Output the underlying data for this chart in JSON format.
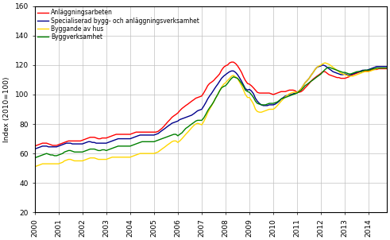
{
  "ylabel": "Index (2010=100)",
  "ylim": [
    20,
    160
  ],
  "yticks": [
    20,
    40,
    60,
    80,
    100,
    120,
    140,
    160
  ],
  "xlim": [
    2000.0,
    2014.75
  ],
  "xticks": [
    2000,
    2001,
    2002,
    2003,
    2004,
    2005,
    2006,
    2007,
    2008,
    2009,
    2010,
    2011,
    2012,
    2013,
    2014
  ],
  "colors": {
    "byggverksamhet": "#008000",
    "byggande_av_hus": "#FFD700",
    "anlaggningsarbeten": "#FF0000",
    "specialiserad": "#00008B"
  },
  "legend": [
    "Byggverksamhet",
    "Byggande av hus",
    "Anläggningsarbeten",
    "Specialiserad bygg- och anläggningsverksamhet"
  ],
  "series": {
    "t": [
      2000.0,
      2000.08,
      2000.17,
      2000.25,
      2000.33,
      2000.42,
      2000.5,
      2000.58,
      2000.67,
      2000.75,
      2000.83,
      2000.92,
      2001.0,
      2001.08,
      2001.17,
      2001.25,
      2001.33,
      2001.42,
      2001.5,
      2001.58,
      2001.67,
      2001.75,
      2001.83,
      2001.92,
      2002.0,
      2002.08,
      2002.17,
      2002.25,
      2002.33,
      2002.42,
      2002.5,
      2002.58,
      2002.67,
      2002.75,
      2002.83,
      2002.92,
      2003.0,
      2003.08,
      2003.17,
      2003.25,
      2003.33,
      2003.42,
      2003.5,
      2003.58,
      2003.67,
      2003.75,
      2003.83,
      2003.92,
      2004.0,
      2004.08,
      2004.17,
      2004.25,
      2004.33,
      2004.42,
      2004.5,
      2004.58,
      2004.67,
      2004.75,
      2004.83,
      2004.92,
      2005.0,
      2005.08,
      2005.17,
      2005.25,
      2005.33,
      2005.42,
      2005.5,
      2005.58,
      2005.67,
      2005.75,
      2005.83,
      2005.92,
      2006.0,
      2006.08,
      2006.17,
      2006.25,
      2006.33,
      2006.42,
      2006.5,
      2006.58,
      2006.67,
      2006.75,
      2006.83,
      2006.92,
      2007.0,
      2007.08,
      2007.17,
      2007.25,
      2007.33,
      2007.42,
      2007.5,
      2007.58,
      2007.67,
      2007.75,
      2007.83,
      2007.92,
      2008.0,
      2008.08,
      2008.17,
      2008.25,
      2008.33,
      2008.42,
      2008.5,
      2008.58,
      2008.67,
      2008.75,
      2008.83,
      2008.92,
      2009.0,
      2009.08,
      2009.17,
      2009.25,
      2009.33,
      2009.42,
      2009.5,
      2009.58,
      2009.67,
      2009.75,
      2009.83,
      2009.92,
      2010.0,
      2010.08,
      2010.17,
      2010.25,
      2010.33,
      2010.42,
      2010.5,
      2010.58,
      2010.67,
      2010.75,
      2010.83,
      2010.92,
      2011.0,
      2011.08,
      2011.17,
      2011.25,
      2011.33,
      2011.42,
      2011.5,
      2011.58,
      2011.67,
      2011.75,
      2011.83,
      2011.92,
      2012.0,
      2012.08,
      2012.17,
      2012.25,
      2012.33,
      2012.42,
      2012.5,
      2012.58,
      2012.67,
      2012.75,
      2012.83,
      2012.92,
      2013.0,
      2013.08,
      2013.17,
      2013.25,
      2013.33,
      2013.42,
      2013.5,
      2013.58,
      2013.67,
      2013.75,
      2013.83,
      2013.92,
      2014.0,
      2014.08,
      2014.17,
      2014.25,
      2014.33,
      2014.42,
      2014.5,
      2014.58,
      2014.67,
      2014.75
    ],
    "byggverksamhet": [
      57.0,
      57.5,
      58.0,
      58.5,
      59.0,
      59.5,
      60.0,
      59.5,
      59.0,
      59.0,
      58.5,
      58.5,
      59.0,
      59.5,
      60.0,
      61.0,
      61.5,
      62.0,
      62.0,
      61.5,
      61.0,
      61.0,
      61.0,
      61.0,
      61.0,
      61.5,
      62.0,
      62.5,
      63.0,
      63.0,
      63.0,
      62.5,
      62.0,
      62.0,
      62.5,
      62.5,
      62.0,
      62.5,
      63.0,
      63.5,
      64.0,
      64.5,
      65.0,
      65.0,
      65.0,
      65.0,
      65.0,
      65.0,
      65.0,
      65.5,
      66.0,
      66.5,
      67.0,
      67.5,
      68.0,
      68.0,
      68.0,
      68.0,
      68.0,
      68.0,
      68.0,
      68.5,
      69.0,
      69.5,
      70.0,
      70.5,
      71.0,
      71.5,
      72.0,
      72.5,
      73.0,
      73.0,
      72.0,
      73.0,
      74.0,
      75.5,
      77.0,
      78.0,
      79.0,
      80.0,
      81.0,
      82.0,
      82.5,
      82.5,
      82.5,
      84.0,
      86.5,
      89.0,
      91.0,
      93.0,
      95.0,
      97.5,
      100.0,
      102.5,
      104.5,
      105.5,
      106.0,
      107.5,
      109.5,
      111.0,
      112.0,
      111.5,
      111.0,
      109.5,
      107.5,
      105.5,
      103.0,
      102.0,
      101.5,
      100.0,
      98.0,
      95.5,
      94.0,
      93.5,
      93.0,
      93.0,
      93.0,
      93.5,
      94.0,
      94.0,
      94.0,
      94.5,
      95.0,
      96.0,
      97.0,
      97.5,
      98.0,
      98.5,
      99.0,
      99.5,
      100.0,
      100.5,
      101.0,
      102.0,
      103.0,
      104.5,
      106.0,
      107.0,
      108.0,
      109.0,
      110.0,
      111.0,
      112.0,
      113.0,
      114.0,
      115.5,
      117.0,
      118.0,
      118.5,
      118.0,
      117.5,
      117.0,
      116.5,
      116.0,
      115.5,
      115.0,
      115.0,
      114.5,
      114.0,
      114.0,
      114.5,
      115.0,
      115.5,
      115.5,
      115.5,
      116.0,
      116.5,
      116.5,
      116.5,
      117.0,
      117.5,
      117.5,
      118.0,
      118.0,
      118.0,
      118.0,
      118.0,
      118.0
    ],
    "byggande_av_hus": [
      51.0,
      51.5,
      52.0,
      52.5,
      53.0,
      53.0,
      53.0,
      53.0,
      53.0,
      53.0,
      53.0,
      53.0,
      53.0,
      53.5,
      54.0,
      55.0,
      55.5,
      56.0,
      56.0,
      55.5,
      55.0,
      55.0,
      55.0,
      55.0,
      55.0,
      55.5,
      56.0,
      56.5,
      57.0,
      57.0,
      57.0,
      56.5,
      56.0,
      56.0,
      56.0,
      56.0,
      56.0,
      56.5,
      57.0,
      57.5,
      57.5,
      57.5,
      57.5,
      57.5,
      57.5,
      57.5,
      57.5,
      57.5,
      57.5,
      58.0,
      58.5,
      59.0,
      59.5,
      60.0,
      60.0,
      60.0,
      60.0,
      60.0,
      60.0,
      60.0,
      60.0,
      60.5,
      61.0,
      62.0,
      63.0,
      64.0,
      65.0,
      66.0,
      67.0,
      68.0,
      68.5,
      68.5,
      67.5,
      68.5,
      70.0,
      71.5,
      73.0,
      74.5,
      76.0,
      77.5,
      79.0,
      80.0,
      80.5,
      80.0,
      79.5,
      81.5,
      84.5,
      87.5,
      90.0,
      92.5,
      95.0,
      97.5,
      100.0,
      102.5,
      105.0,
      107.0,
      108.0,
      109.5,
      111.0,
      112.5,
      113.0,
      112.0,
      111.0,
      108.5,
      106.0,
      103.0,
      100.0,
      98.0,
      98.0,
      96.0,
      93.5,
      90.0,
      88.5,
      88.0,
      88.0,
      88.5,
      89.0,
      89.5,
      90.0,
      90.0,
      90.0,
      91.0,
      92.5,
      94.0,
      95.5,
      97.0,
      98.5,
      99.5,
      100.5,
      101.0,
      101.5,
      101.5,
      101.5,
      102.5,
      104.0,
      106.0,
      108.0,
      109.5,
      111.0,
      113.0,
      115.0,
      117.0,
      118.5,
      119.5,
      120.0,
      121.0,
      121.5,
      121.0,
      120.5,
      119.5,
      118.5,
      117.5,
      116.5,
      115.5,
      114.5,
      114.0,
      113.5,
      113.0,
      112.5,
      112.5,
      112.5,
      113.0,
      113.5,
      114.0,
      114.5,
      115.0,
      115.5,
      115.5,
      115.5,
      116.0,
      116.5,
      117.0,
      117.5,
      118.0,
      118.0,
      118.0,
      118.0,
      118.0
    ],
    "anlaggningsarbeten": [
      65.0,
      65.5,
      66.0,
      66.5,
      67.0,
      67.0,
      67.0,
      66.5,
      66.0,
      65.5,
      65.5,
      65.5,
      66.0,
      66.5,
      67.0,
      67.5,
      68.0,
      68.5,
      68.5,
      68.5,
      68.5,
      68.5,
      68.5,
      68.5,
      69.0,
      69.5,
      70.0,
      70.5,
      71.0,
      71.0,
      71.0,
      70.5,
      70.0,
      70.0,
      70.5,
      70.5,
      70.5,
      71.0,
      71.5,
      72.0,
      72.5,
      73.0,
      73.0,
      73.0,
      73.0,
      73.0,
      73.0,
      73.0,
      73.0,
      73.5,
      74.0,
      74.5,
      74.5,
      74.5,
      74.5,
      74.5,
      74.5,
      74.5,
      74.5,
      74.5,
      74.5,
      74.5,
      75.0,
      76.0,
      77.0,
      78.5,
      80.0,
      81.5,
      83.0,
      84.5,
      85.5,
      86.5,
      87.5,
      89.0,
      90.5,
      91.5,
      92.5,
      93.5,
      94.5,
      95.5,
      96.5,
      97.5,
      98.0,
      98.5,
      99.0,
      101.0,
      103.5,
      106.0,
      107.5,
      108.5,
      109.5,
      111.0,
      112.5,
      114.0,
      116.5,
      118.5,
      119.5,
      120.0,
      121.5,
      122.0,
      122.0,
      121.0,
      119.5,
      117.5,
      115.0,
      112.0,
      109.5,
      107.5,
      107.0,
      106.0,
      104.5,
      103.0,
      101.5,
      101.0,
      101.0,
      101.0,
      101.0,
      101.0,
      101.0,
      100.5,
      100.0,
      100.5,
      101.0,
      101.5,
      102.0,
      102.0,
      102.0,
      102.5,
      103.0,
      103.0,
      103.0,
      102.5,
      101.5,
      101.5,
      102.0,
      103.0,
      104.5,
      106.0,
      107.5,
      109.0,
      110.5,
      111.5,
      112.5,
      113.5,
      114.5,
      115.5,
      115.5,
      114.5,
      113.5,
      113.0,
      112.5,
      112.0,
      111.5,
      111.5,
      111.0,
      111.0,
      111.0,
      111.5,
      112.0,
      113.0,
      113.5,
      114.0,
      114.5,
      115.0,
      115.5,
      116.0,
      116.0,
      116.0,
      116.0,
      116.5,
      117.0,
      117.0,
      117.0,
      117.5,
      117.5,
      117.5,
      117.5,
      117.5
    ],
    "specialiserad": [
      63.0,
      63.5,
      64.0,
      64.5,
      65.0,
      65.0,
      65.0,
      64.5,
      64.5,
      64.5,
      64.5,
      64.5,
      65.0,
      65.5,
      66.0,
      66.5,
      67.0,
      67.0,
      67.0,
      66.5,
      66.5,
      66.5,
      66.5,
      66.5,
      66.5,
      67.0,
      67.5,
      68.0,
      68.0,
      67.5,
      67.5,
      67.0,
      67.0,
      67.0,
      67.0,
      67.0,
      67.0,
      67.5,
      68.0,
      68.5,
      69.0,
      69.5,
      70.0,
      70.0,
      70.0,
      70.0,
      70.0,
      70.0,
      70.0,
      70.5,
      71.0,
      71.5,
      72.0,
      72.5,
      72.5,
      72.5,
      72.5,
      72.5,
      72.5,
      72.5,
      72.5,
      73.0,
      73.5,
      74.5,
      75.5,
      76.5,
      77.5,
      78.5,
      79.5,
      80.5,
      81.0,
      81.5,
      82.0,
      83.0,
      83.5,
      84.0,
      84.5,
      85.0,
      85.5,
      86.0,
      87.0,
      88.0,
      89.0,
      89.5,
      90.0,
      92.0,
      94.5,
      97.0,
      99.0,
      101.0,
      103.0,
      105.0,
      107.0,
      109.0,
      111.0,
      112.5,
      113.5,
      114.5,
      115.5,
      116.0,
      116.0,
      115.0,
      113.5,
      111.5,
      109.0,
      106.5,
      104.0,
      103.0,
      103.5,
      102.5,
      100.5,
      97.5,
      95.5,
      94.0,
      93.0,
      92.5,
      92.5,
      92.5,
      93.0,
      93.0,
      93.0,
      93.5,
      94.5,
      95.5,
      97.0,
      98.0,
      99.0,
      99.5,
      100.0,
      100.0,
      100.5,
      101.0,
      101.5,
      102.5,
      104.0,
      106.0,
      108.0,
      109.5,
      111.0,
      113.0,
      115.0,
      117.0,
      118.5,
      119.0,
      119.5,
      120.0,
      119.5,
      118.5,
      117.5,
      116.5,
      115.5,
      115.0,
      114.5,
      114.0,
      113.5,
      113.5,
      114.0,
      113.5,
      113.0,
      113.5,
      114.0,
      114.5,
      115.0,
      115.5,
      116.0,
      116.5,
      116.5,
      116.5,
      117.0,
      117.5,
      118.0,
      118.5,
      119.0,
      119.0,
      119.0,
      119.0,
      119.0,
      119.0
    ]
  },
  "grid_color": "#C0C0C0",
  "bg_color": "#FFFFFF",
  "linewidth": 1.0
}
